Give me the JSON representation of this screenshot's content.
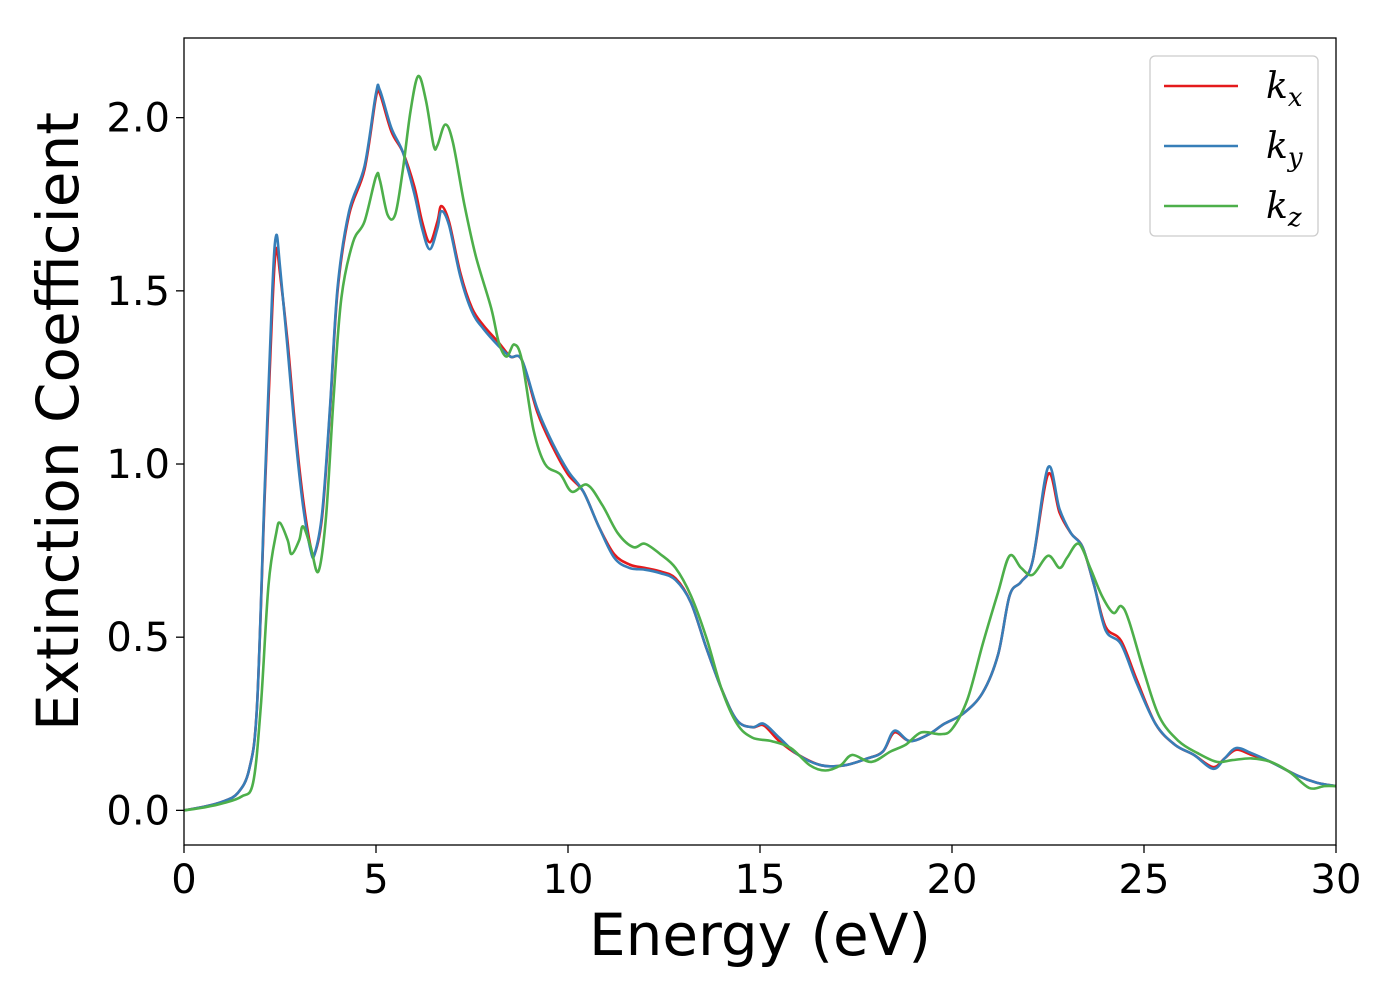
{
  "chart_data": {
    "type": "line",
    "xlabel": "Energy (eV)",
    "ylabel": "Extinction Coefficient",
    "xlim": [
      0,
      30
    ],
    "ylim": [
      -0.1,
      2.23
    ],
    "xticks": [
      "0",
      "5",
      "10",
      "15",
      "20",
      "25",
      "30"
    ],
    "yticks": [
      "0.0",
      "0.5",
      "1.0",
      "1.5",
      "2.0"
    ],
    "grid": false,
    "legend_position": "top-right",
    "series": [
      {
        "name": "k",
        "subscript": "x",
        "color": "#e41a1c",
        "points": [
          [
            0,
            0
          ],
          [
            0.5,
            0.01
          ],
          [
            1,
            0.025
          ],
          [
            1.4,
            0.05
          ],
          [
            1.7,
            0.12
          ],
          [
            1.9,
            0.3
          ],
          [
            2.1,
            0.9
          ],
          [
            2.3,
            1.45
          ],
          [
            2.4,
            1.62
          ],
          [
            2.5,
            1.55
          ],
          [
            2.7,
            1.35
          ],
          [
            2.9,
            1.1
          ],
          [
            3.1,
            0.9
          ],
          [
            3.3,
            0.76
          ],
          [
            3.4,
            0.74
          ],
          [
            3.6,
            0.85
          ],
          [
            3.8,
            1.15
          ],
          [
            4.0,
            1.5
          ],
          [
            4.3,
            1.72
          ],
          [
            4.7,
            1.85
          ],
          [
            5.0,
            2.06
          ],
          [
            5.1,
            2.07
          ],
          [
            5.4,
            1.96
          ],
          [
            5.7,
            1.9
          ],
          [
            6.0,
            1.8
          ],
          [
            6.2,
            1.7
          ],
          [
            6.4,
            1.64
          ],
          [
            6.6,
            1.7
          ],
          [
            6.7,
            1.745
          ],
          [
            6.9,
            1.7
          ],
          [
            7.2,
            1.55
          ],
          [
            7.5,
            1.45
          ],
          [
            7.8,
            1.4
          ],
          [
            8.2,
            1.35
          ],
          [
            8.5,
            1.31
          ],
          [
            8.8,
            1.3
          ],
          [
            9.2,
            1.15
          ],
          [
            9.6,
            1.05
          ],
          [
            10.0,
            0.97
          ],
          [
            10.4,
            0.92
          ],
          [
            10.8,
            0.82
          ],
          [
            11.2,
            0.74
          ],
          [
            11.6,
            0.71
          ],
          [
            12.0,
            0.7
          ],
          [
            12.4,
            0.69
          ],
          [
            12.8,
            0.67
          ],
          [
            13.2,
            0.6
          ],
          [
            13.6,
            0.47
          ],
          [
            14.0,
            0.35
          ],
          [
            14.4,
            0.26
          ],
          [
            14.8,
            0.24
          ],
          [
            15.1,
            0.245
          ],
          [
            15.5,
            0.2
          ],
          [
            16.0,
            0.16
          ],
          [
            16.6,
            0.13
          ],
          [
            17.2,
            0.13
          ],
          [
            17.8,
            0.15
          ],
          [
            18.2,
            0.17
          ],
          [
            18.5,
            0.225
          ],
          [
            18.9,
            0.2
          ],
          [
            19.4,
            0.22
          ],
          [
            19.8,
            0.25
          ],
          [
            20.3,
            0.28
          ],
          [
            20.8,
            0.34
          ],
          [
            21.2,
            0.45
          ],
          [
            21.5,
            0.62
          ],
          [
            21.8,
            0.66
          ],
          [
            22.1,
            0.72
          ],
          [
            22.5,
            0.97
          ],
          [
            22.8,
            0.86
          ],
          [
            23.1,
            0.8
          ],
          [
            23.4,
            0.76
          ],
          [
            23.7,
            0.65
          ],
          [
            24.0,
            0.53
          ],
          [
            24.4,
            0.49
          ],
          [
            24.8,
            0.38
          ],
          [
            25.3,
            0.25
          ],
          [
            25.8,
            0.19
          ],
          [
            26.3,
            0.16
          ],
          [
            26.8,
            0.125
          ],
          [
            27.1,
            0.15
          ],
          [
            27.4,
            0.175
          ],
          [
            27.8,
            0.16
          ],
          [
            28.3,
            0.14
          ],
          [
            29.0,
            0.1
          ],
          [
            29.5,
            0.08
          ],
          [
            30,
            0.07
          ]
        ]
      },
      {
        "name": "k",
        "subscript": "y",
        "color": "#377eb8",
        "points": [
          [
            0,
            0
          ],
          [
            0.5,
            0.01
          ],
          [
            1,
            0.025
          ],
          [
            1.4,
            0.05
          ],
          [
            1.7,
            0.12
          ],
          [
            1.9,
            0.3
          ],
          [
            2.1,
            0.92
          ],
          [
            2.3,
            1.5
          ],
          [
            2.4,
            1.66
          ],
          [
            2.5,
            1.57
          ],
          [
            2.7,
            1.33
          ],
          [
            2.9,
            1.08
          ],
          [
            3.1,
            0.88
          ],
          [
            3.3,
            0.75
          ],
          [
            3.4,
            0.74
          ],
          [
            3.6,
            0.86
          ],
          [
            3.8,
            1.16
          ],
          [
            4.0,
            1.51
          ],
          [
            4.3,
            1.73
          ],
          [
            4.7,
            1.86
          ],
          [
            5.0,
            2.07
          ],
          [
            5.1,
            2.08
          ],
          [
            5.4,
            1.97
          ],
          [
            5.7,
            1.9
          ],
          [
            6.0,
            1.78
          ],
          [
            6.2,
            1.68
          ],
          [
            6.4,
            1.62
          ],
          [
            6.6,
            1.68
          ],
          [
            6.7,
            1.73
          ],
          [
            6.9,
            1.69
          ],
          [
            7.2,
            1.54
          ],
          [
            7.5,
            1.44
          ],
          [
            7.8,
            1.39
          ],
          [
            8.2,
            1.34
          ],
          [
            8.5,
            1.31
          ],
          [
            8.8,
            1.3
          ],
          [
            9.2,
            1.16
          ],
          [
            9.6,
            1.06
          ],
          [
            10.0,
            0.98
          ],
          [
            10.4,
            0.92
          ],
          [
            10.8,
            0.82
          ],
          [
            11.2,
            0.73
          ],
          [
            11.6,
            0.7
          ],
          [
            12.0,
            0.695
          ],
          [
            12.4,
            0.685
          ],
          [
            12.8,
            0.665
          ],
          [
            13.2,
            0.6
          ],
          [
            13.6,
            0.47
          ],
          [
            14.0,
            0.35
          ],
          [
            14.4,
            0.26
          ],
          [
            14.8,
            0.24
          ],
          [
            15.1,
            0.25
          ],
          [
            15.5,
            0.21
          ],
          [
            16.0,
            0.16
          ],
          [
            16.6,
            0.13
          ],
          [
            17.2,
            0.13
          ],
          [
            17.8,
            0.15
          ],
          [
            18.2,
            0.17
          ],
          [
            18.5,
            0.23
          ],
          [
            18.9,
            0.2
          ],
          [
            19.4,
            0.22
          ],
          [
            19.8,
            0.25
          ],
          [
            20.3,
            0.28
          ],
          [
            20.8,
            0.34
          ],
          [
            21.2,
            0.45
          ],
          [
            21.5,
            0.62
          ],
          [
            21.8,
            0.66
          ],
          [
            22.1,
            0.72
          ],
          [
            22.5,
            0.99
          ],
          [
            22.8,
            0.87
          ],
          [
            23.1,
            0.8
          ],
          [
            23.4,
            0.76
          ],
          [
            23.7,
            0.65
          ],
          [
            24.0,
            0.52
          ],
          [
            24.4,
            0.48
          ],
          [
            24.8,
            0.37
          ],
          [
            25.3,
            0.25
          ],
          [
            25.8,
            0.19
          ],
          [
            26.3,
            0.16
          ],
          [
            26.8,
            0.12
          ],
          [
            27.1,
            0.15
          ],
          [
            27.4,
            0.18
          ],
          [
            27.8,
            0.165
          ],
          [
            28.3,
            0.14
          ],
          [
            29.0,
            0.1
          ],
          [
            29.5,
            0.08
          ],
          [
            30,
            0.07
          ]
        ]
      },
      {
        "name": "k",
        "subscript": "z",
        "color": "#4daf4a",
        "points": [
          [
            0,
            0
          ],
          [
            0.5,
            0.008
          ],
          [
            1,
            0.02
          ],
          [
            1.5,
            0.04
          ],
          [
            1.8,
            0.08
          ],
          [
            2.0,
            0.3
          ],
          [
            2.2,
            0.65
          ],
          [
            2.4,
            0.8
          ],
          [
            2.5,
            0.83
          ],
          [
            2.7,
            0.78
          ],
          [
            2.8,
            0.74
          ],
          [
            3.0,
            0.78
          ],
          [
            3.1,
            0.82
          ],
          [
            3.3,
            0.76
          ],
          [
            3.5,
            0.69
          ],
          [
            3.7,
            0.85
          ],
          [
            3.9,
            1.2
          ],
          [
            4.1,
            1.48
          ],
          [
            4.4,
            1.64
          ],
          [
            4.7,
            1.7
          ],
          [
            5.0,
            1.83
          ],
          [
            5.1,
            1.82
          ],
          [
            5.3,
            1.72
          ],
          [
            5.5,
            1.72
          ],
          [
            5.7,
            1.85
          ],
          [
            5.9,
            2.02
          ],
          [
            6.1,
            2.12
          ],
          [
            6.3,
            2.05
          ],
          [
            6.5,
            1.92
          ],
          [
            6.6,
            1.92
          ],
          [
            6.8,
            1.98
          ],
          [
            7.0,
            1.93
          ],
          [
            7.3,
            1.75
          ],
          [
            7.6,
            1.6
          ],
          [
            8.0,
            1.45
          ],
          [
            8.2,
            1.35
          ],
          [
            8.4,
            1.31
          ],
          [
            8.6,
            1.345
          ],
          [
            8.8,
            1.3
          ],
          [
            9.1,
            1.1
          ],
          [
            9.4,
            1.0
          ],
          [
            9.8,
            0.97
          ],
          [
            10.1,
            0.92
          ],
          [
            10.5,
            0.94
          ],
          [
            10.9,
            0.88
          ],
          [
            11.3,
            0.8
          ],
          [
            11.7,
            0.76
          ],
          [
            12.0,
            0.77
          ],
          [
            12.4,
            0.74
          ],
          [
            12.8,
            0.7
          ],
          [
            13.2,
            0.62
          ],
          [
            13.6,
            0.5
          ],
          [
            14.0,
            0.35
          ],
          [
            14.4,
            0.25
          ],
          [
            14.8,
            0.21
          ],
          [
            15.3,
            0.2
          ],
          [
            15.8,
            0.18
          ],
          [
            16.3,
            0.13
          ],
          [
            16.7,
            0.115
          ],
          [
            17.1,
            0.13
          ],
          [
            17.4,
            0.16
          ],
          [
            17.9,
            0.14
          ],
          [
            18.4,
            0.17
          ],
          [
            18.8,
            0.19
          ],
          [
            19.2,
            0.225
          ],
          [
            19.7,
            0.22
          ],
          [
            20.0,
            0.235
          ],
          [
            20.4,
            0.32
          ],
          [
            20.8,
            0.48
          ],
          [
            21.2,
            0.63
          ],
          [
            21.5,
            0.735
          ],
          [
            21.8,
            0.7
          ],
          [
            22.1,
            0.68
          ],
          [
            22.5,
            0.735
          ],
          [
            22.8,
            0.7
          ],
          [
            23.0,
            0.73
          ],
          [
            23.3,
            0.77
          ],
          [
            23.6,
            0.7
          ],
          [
            23.9,
            0.62
          ],
          [
            24.2,
            0.57
          ],
          [
            24.4,
            0.59
          ],
          [
            24.6,
            0.55
          ],
          [
            25.0,
            0.4
          ],
          [
            25.4,
            0.27
          ],
          [
            25.9,
            0.2
          ],
          [
            26.4,
            0.165
          ],
          [
            26.9,
            0.14
          ],
          [
            27.3,
            0.145
          ],
          [
            27.8,
            0.15
          ],
          [
            28.3,
            0.14
          ],
          [
            28.8,
            0.11
          ],
          [
            29.3,
            0.065
          ],
          [
            29.7,
            0.07
          ],
          [
            30,
            0.07
          ]
        ]
      }
    ]
  }
}
